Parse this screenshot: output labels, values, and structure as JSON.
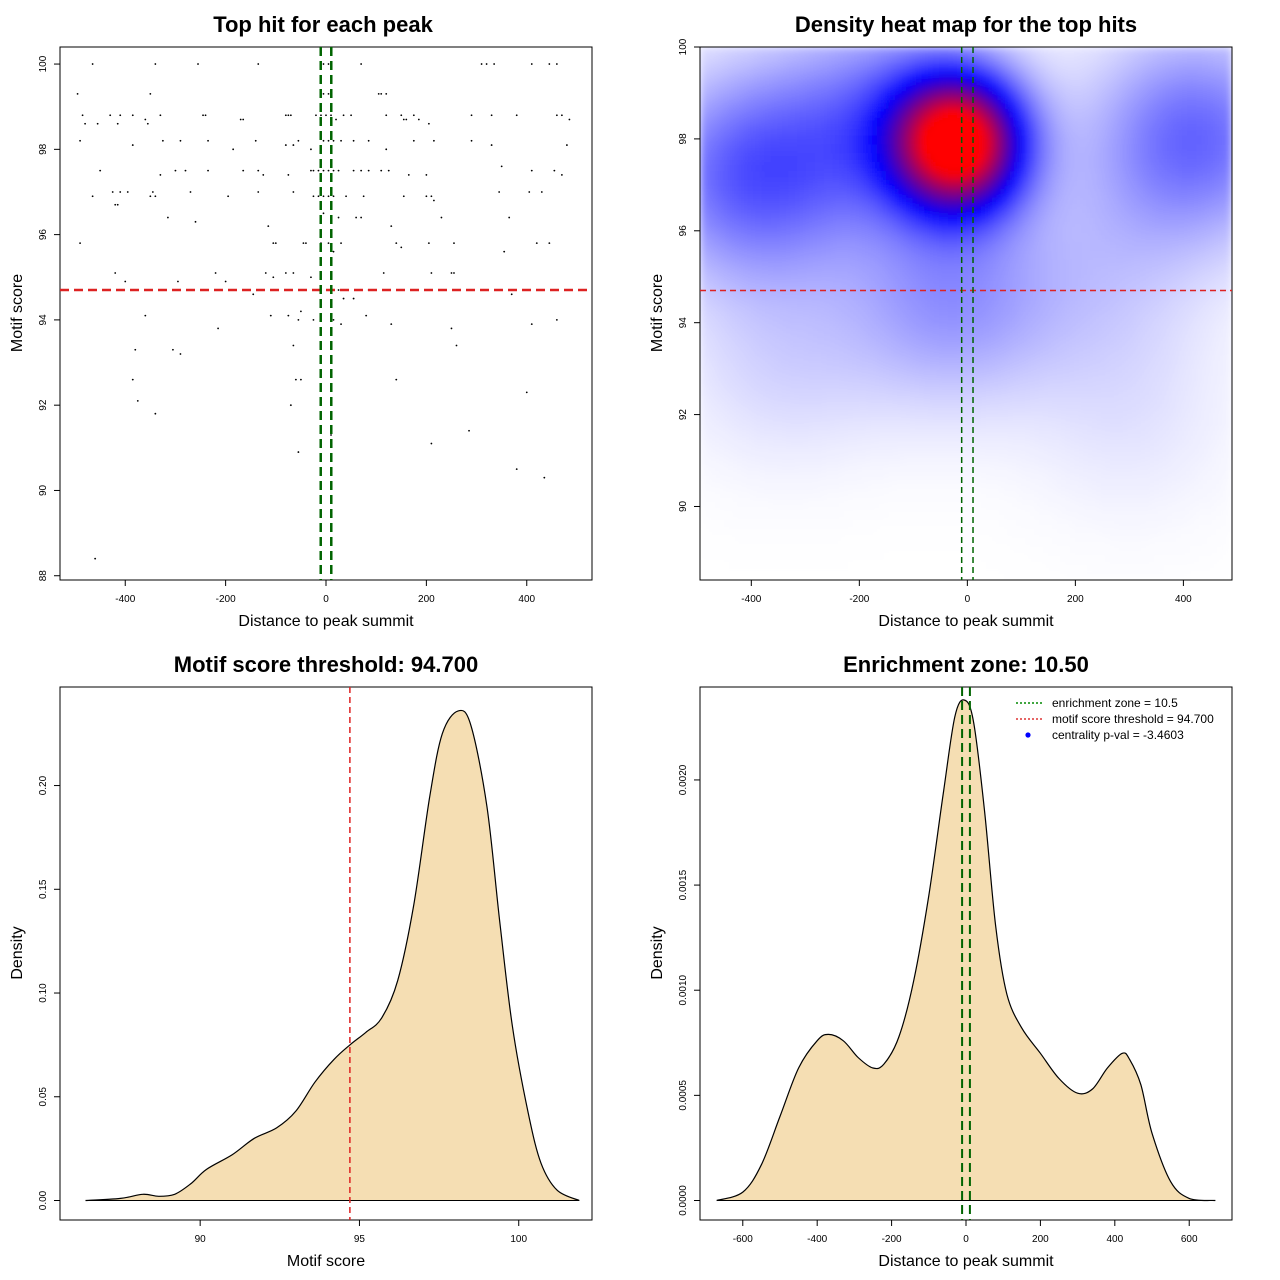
{
  "chart_data": [
    {
      "type": "scatter",
      "title": "Top hit for each peak",
      "xlabel": "Distance to peak summit",
      "ylabel": "Motif score",
      "xlim": [
        -530,
        530
      ],
      "ylim": [
        87.9,
        100.4
      ],
      "xticks": [
        -400,
        -200,
        0,
        200,
        400
      ],
      "yticks": [
        88,
        90,
        92,
        94,
        96,
        98,
        100
      ],
      "hlines": [
        {
          "value": 94.7,
          "color": "#dd2222",
          "style": "dashed"
        }
      ],
      "vlines": [
        {
          "value": -10.5,
          "color": "#006400",
          "style": "dashed"
        },
        {
          "value": 10.5,
          "color": "#006400",
          "style": "dashed"
        }
      ],
      "points": [
        [
          -465,
          100
        ],
        [
          -340,
          100
        ],
        [
          -255,
          100
        ],
        [
          -135,
          100
        ],
        [
          -5,
          100
        ],
        [
          5,
          100
        ],
        [
          70,
          100
        ],
        [
          310,
          100
        ],
        [
          320,
          100
        ],
        [
          335,
          100
        ],
        [
          410,
          100
        ],
        [
          445,
          100
        ],
        [
          460,
          100
        ],
        [
          -495,
          99.3
        ],
        [
          -350,
          99.3
        ],
        [
          -5,
          99.3
        ],
        [
          5,
          99.3
        ],
        [
          105,
          99.3
        ],
        [
          110,
          99.3
        ],
        [
          120,
          99.3
        ],
        [
          -485,
          98.8
        ],
        [
          -480,
          98.6
        ],
        [
          -430,
          98.8
        ],
        [
          -410,
          98.8
        ],
        [
          -385,
          98.8
        ],
        [
          -360,
          98.7
        ],
        [
          -330,
          98.8
        ],
        [
          -245,
          98.8
        ],
        [
          -240,
          98.8
        ],
        [
          -170,
          98.7
        ],
        [
          -165,
          98.7
        ],
        [
          -80,
          98.8
        ],
        [
          -75,
          98.8
        ],
        [
          -70,
          98.8
        ],
        [
          -20,
          98.8
        ],
        [
          -10,
          98.8
        ],
        [
          0,
          98.8
        ],
        [
          10,
          98.8
        ],
        [
          20,
          98.7
        ],
        [
          35,
          98.8
        ],
        [
          50,
          98.8
        ],
        [
          120,
          98.8
        ],
        [
          150,
          98.8
        ],
        [
          155,
          98.7
        ],
        [
          160,
          98.7
        ],
        [
          175,
          98.8
        ],
        [
          185,
          98.7
        ],
        [
          205,
          98.6
        ],
        [
          290,
          98.8
        ],
        [
          330,
          98.8
        ],
        [
          380,
          98.8
        ],
        [
          460,
          98.8
        ],
        [
          470,
          98.8
        ],
        [
          485,
          98.7
        ],
        [
          -455,
          98.6
        ],
        [
          -415,
          98.6
        ],
        [
          -355,
          98.6
        ],
        [
          -490,
          98.2
        ],
        [
          -385,
          98.1
        ],
        [
          -325,
          98.2
        ],
        [
          -290,
          98.2
        ],
        [
          -235,
          98.2
        ],
        [
          -185,
          98.0
        ],
        [
          -140,
          98.2
        ],
        [
          -80,
          98.1
        ],
        [
          -65,
          98.1
        ],
        [
          -55,
          98.2
        ],
        [
          -30,
          98.0
        ],
        [
          -5,
          98.2
        ],
        [
          5,
          98.2
        ],
        [
          15,
          98.2
        ],
        [
          30,
          98.2
        ],
        [
          55,
          98.2
        ],
        [
          85,
          98.2
        ],
        [
          120,
          98.0
        ],
        [
          175,
          98.2
        ],
        [
          215,
          98.2
        ],
        [
          290,
          98.2
        ],
        [
          330,
          98.1
        ],
        [
          480,
          98.1
        ],
        [
          -450,
          97.5
        ],
        [
          -330,
          97.4
        ],
        [
          -300,
          97.5
        ],
        [
          -280,
          97.5
        ],
        [
          -235,
          97.5
        ],
        [
          -165,
          97.5
        ],
        [
          -135,
          97.5
        ],
        [
          -125,
          97.4
        ],
        [
          -75,
          97.4
        ],
        [
          -30,
          97.5
        ],
        [
          -25,
          97.5
        ],
        [
          -15,
          97.5
        ],
        [
          -5,
          97.5
        ],
        [
          5,
          97.5
        ],
        [
          15,
          97.5
        ],
        [
          25,
          97.5
        ],
        [
          55,
          97.5
        ],
        [
          70,
          97.5
        ],
        [
          85,
          97.5
        ],
        [
          110,
          97.5
        ],
        [
          125,
          97.5
        ],
        [
          165,
          97.4
        ],
        [
          200,
          97.4
        ],
        [
          350,
          97.6
        ],
        [
          410,
          97.5
        ],
        [
          455,
          97.5
        ],
        [
          470,
          97.4
        ],
        [
          -425,
          97.0
        ],
        [
          -410,
          97.0
        ],
        [
          -395,
          97.0
        ],
        [
          -345,
          97.0
        ],
        [
          -270,
          97.0
        ],
        [
          -135,
          97.0
        ],
        [
          -65,
          97.0
        ],
        [
          -25,
          96.9
        ],
        [
          -15,
          96.9
        ],
        [
          -5,
          96.9
        ],
        [
          5,
          96.9
        ],
        [
          15,
          96.9
        ],
        [
          40,
          96.9
        ],
        [
          75,
          96.9
        ],
        [
          155,
          96.9
        ],
        [
          210,
          96.9
        ],
        [
          215,
          96.8
        ],
        [
          345,
          97.0
        ],
        [
          405,
          97.0
        ],
        [
          430,
          97.0
        ],
        [
          -465,
          96.9
        ],
        [
          -420,
          96.7
        ],
        [
          -415,
          96.7
        ],
        [
          -350,
          96.9
        ],
        [
          -340,
          96.9
        ],
        [
          -195,
          96.9
        ],
        [
          -5,
          96.5
        ],
        [
          10,
          96.4
        ],
        [
          25,
          96.4
        ],
        [
          60,
          96.4
        ],
        [
          70,
          96.4
        ],
        [
          200,
          96.9
        ],
        [
          230,
          96.4
        ],
        [
          365,
          96.4
        ],
        [
          -490,
          95.8
        ],
        [
          -315,
          96.4
        ],
        [
          -260,
          96.3
        ],
        [
          -115,
          96.2
        ],
        [
          -105,
          95.8
        ],
        [
          -100,
          95.8
        ],
        [
          -45,
          95.8
        ],
        [
          -40,
          95.8
        ],
        [
          -10,
          95.8
        ],
        [
          5,
          95.8
        ],
        [
          15,
          95.6
        ],
        [
          30,
          95.8
        ],
        [
          130,
          96.2
        ],
        [
          140,
          95.8
        ],
        [
          150,
          95.7
        ],
        [
          205,
          95.8
        ],
        [
          255,
          95.8
        ],
        [
          355,
          95.6
        ],
        [
          420,
          95.8
        ],
        [
          445,
          95.8
        ],
        [
          -420,
          95.1
        ],
        [
          -400,
          94.9
        ],
        [
          -295,
          94.9
        ],
        [
          -220,
          95.1
        ],
        [
          -200,
          94.9
        ],
        [
          -145,
          94.6
        ],
        [
          -120,
          95.1
        ],
        [
          -105,
          95.0
        ],
        [
          -80,
          95.1
        ],
        [
          -65,
          95.1
        ],
        [
          -30,
          95.0
        ],
        [
          -20,
          94.7
        ],
        [
          15,
          94.7
        ],
        [
          25,
          94.7
        ],
        [
          35,
          94.5
        ],
        [
          55,
          94.5
        ],
        [
          85,
          94.7
        ],
        [
          115,
          95.1
        ],
        [
          125,
          94.7
        ],
        [
          210,
          95.1
        ],
        [
          250,
          95.1
        ],
        [
          255,
          95.1
        ],
        [
          370,
          94.6
        ],
        [
          -360,
          94.1
        ],
        [
          -215,
          93.8
        ],
        [
          -110,
          94.1
        ],
        [
          -75,
          94.1
        ],
        [
          -55,
          94.0
        ],
        [
          -50,
          94.2
        ],
        [
          -25,
          94.0
        ],
        [
          15,
          94.0
        ],
        [
          30,
          93.9
        ],
        [
          80,
          94.1
        ],
        [
          130,
          93.9
        ],
        [
          250,
          93.8
        ],
        [
          410,
          93.9
        ],
        [
          460,
          94.0
        ],
        [
          -380,
          93.3
        ],
        [
          -305,
          93.3
        ],
        [
          -290,
          93.2
        ],
        [
          -65,
          93.4
        ],
        [
          260,
          93.4
        ],
        [
          -385,
          92.6
        ],
        [
          -60,
          92.6
        ],
        [
          -50,
          92.6
        ],
        [
          10,
          92.4
        ],
        [
          140,
          92.6
        ],
        [
          -375,
          92.1
        ],
        [
          -340,
          91.8
        ],
        [
          -70,
          92.0
        ],
        [
          10,
          91.3
        ],
        [
          210,
          91.1
        ],
        [
          285,
          91.4
        ],
        [
          400,
          92.3
        ],
        [
          -55,
          90.9
        ],
        [
          380,
          90.5
        ],
        [
          435,
          90.3
        ],
        [
          -460,
          88.4
        ]
      ]
    },
    {
      "type": "heatmap",
      "title": "Density heat map for the top hits",
      "xlabel": "Distance to peak summit",
      "ylabel": "Motif score",
      "xlim": [
        -495,
        490
      ],
      "ylim": [
        88.4,
        100
      ],
      "xticks": [
        -400,
        -200,
        0,
        200,
        400
      ],
      "yticks": [
        90,
        92,
        94,
        96,
        98,
        100
      ],
      "colors": [
        "#ffffff",
        "#0000ff",
        "#ff0000"
      ],
      "density_centers": [
        {
          "x": -15,
          "y": 97.9,
          "weight": 1.0
        },
        {
          "x": -400,
          "y": 97.2,
          "weight": 0.32
        },
        {
          "x": -150,
          "y": 98.4,
          "weight": 0.25
        },
        {
          "x": 420,
          "y": 98.0,
          "weight": 0.3
        },
        {
          "x": -30,
          "y": 94.5,
          "weight": 0.2
        },
        {
          "x": -340,
          "y": 93.2,
          "weight": 0.08
        },
        {
          "x": 250,
          "y": 95.0,
          "weight": 0.08
        },
        {
          "x": 300,
          "y": 92.0,
          "weight": 0.05
        }
      ],
      "hlines": [
        {
          "value": 94.7,
          "color": "#dd2222",
          "style": "dashed"
        }
      ],
      "vlines": [
        {
          "value": -10.5,
          "color": "#006400",
          "style": "dashed"
        },
        {
          "value": 10.5,
          "color": "#006400",
          "style": "dashed"
        }
      ]
    },
    {
      "type": "area",
      "title": "Motif score threshold: 94.700",
      "xlabel": "Motif score",
      "ylabel": "Density",
      "xlim": [
        85.6,
        102.3
      ],
      "ylim": [
        -0.0094,
        0.2475
      ],
      "xticks": [
        90,
        95,
        100
      ],
      "yticks": [
        0.0,
        0.05,
        0.1,
        0.15,
        0.2
      ],
      "ytick_labels": [
        "0.00",
        "0.05",
        "0.10",
        "0.15",
        "0.20"
      ],
      "fill": "#f5deb3",
      "vlines": [
        {
          "value": 94.7,
          "color": "#dd2222",
          "style": "dashed"
        }
      ],
      "x": [
        86.4,
        87.5,
        88.2,
        88.7,
        89.2,
        89.7,
        90.2,
        91.0,
        91.7,
        92.4,
        93.0,
        93.6,
        94.2,
        94.7,
        95.2,
        95.7,
        96.2,
        96.7,
        97.2,
        97.6,
        98.1,
        98.5,
        99.0,
        99.4,
        99.8,
        100.3,
        100.7,
        101.2,
        101.9
      ],
      "values": [
        0.0,
        0.001,
        0.003,
        0.002,
        0.003,
        0.008,
        0.015,
        0.022,
        0.03,
        0.035,
        0.043,
        0.057,
        0.068,
        0.075,
        0.081,
        0.088,
        0.106,
        0.142,
        0.194,
        0.225,
        0.236,
        0.229,
        0.19,
        0.135,
        0.084,
        0.042,
        0.018,
        0.005,
        0.0
      ]
    },
    {
      "type": "area",
      "title": "Enrichment zone: 10.50",
      "xlabel": "Distance to peak summit",
      "ylabel": "Density",
      "xlim": [
        -715,
        715
      ],
      "ylim": [
        -9.28e-05,
        0.002442
      ],
      "xticks": [
        -600,
        -400,
        -200,
        0,
        200,
        400,
        600
      ],
      "yticks": [
        0.0,
        0.0005,
        0.001,
        0.0015,
        0.002
      ],
      "ytick_labels": [
        "0.0000",
        "0.0005",
        "0.0010",
        "0.0015",
        "0.0020"
      ],
      "fill": "#f5deb3",
      "vlines": [
        {
          "value": -10.5,
          "color": "#006400",
          "style": "dashed"
        },
        {
          "value": 10.5,
          "color": "#006400",
          "style": "dashed"
        }
      ],
      "x": [
        -670,
        -600,
        -550,
        -500,
        -450,
        -400,
        -370,
        -330,
        -290,
        -250,
        -220,
        -180,
        -140,
        -100,
        -60,
        -30,
        -5,
        20,
        50,
        80,
        110,
        150,
        200,
        250,
        300,
        340,
        380,
        420,
        440,
        470,
        500,
        550,
        600,
        670
      ],
      "values": [
        0.0,
        4e-05,
        0.00017,
        0.0004,
        0.00063,
        0.00076,
        0.00079,
        0.00076,
        0.00068,
        0.00063,
        0.00065,
        0.00078,
        0.00105,
        0.00145,
        0.00195,
        0.0023,
        0.00238,
        0.00228,
        0.00185,
        0.0013,
        0.00098,
        0.00082,
        0.0007,
        0.00058,
        0.00051,
        0.00053,
        0.00063,
        0.0007,
        0.00067,
        0.00055,
        0.00032,
        9e-05,
        1e-05,
        0.0
      ],
      "legend": [
        {
          "label": "enrichment zone = 10.5",
          "color": "#008800",
          "style": "dotted-line"
        },
        {
          "label": "motif score threshold = 94.700",
          "color": "#dd3333",
          "style": "dotted-line"
        },
        {
          "label": "centrality p-val = -3.4603",
          "color": "#0000ff",
          "style": "point"
        }
      ],
      "legend_position": "top-right"
    }
  ]
}
